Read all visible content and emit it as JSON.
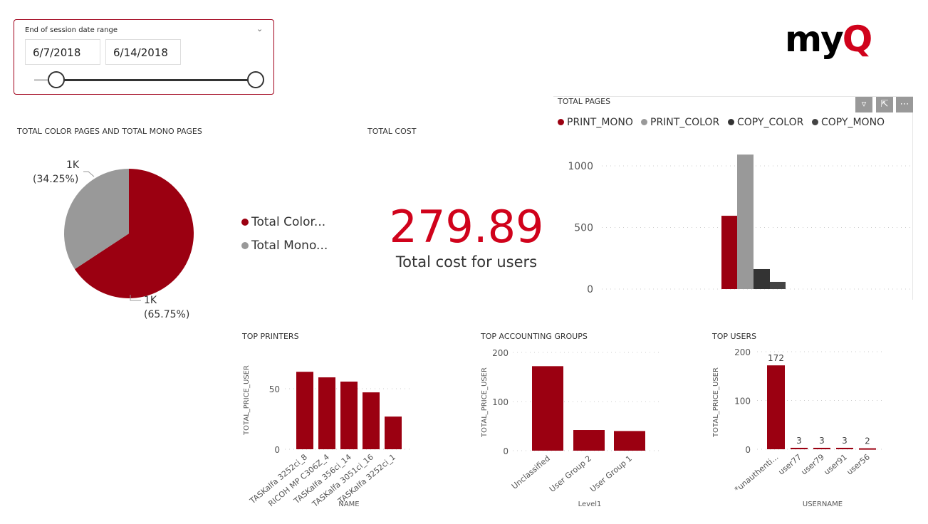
{
  "slicer": {
    "label": "End of session date range",
    "start": "6/7/2018",
    "end": "6/14/2018",
    "chevron": "chevron-down-icon"
  },
  "logo": {
    "text": "myQ",
    "colors": {
      "my": "#000000",
      "Q": "#d0021b"
    }
  },
  "colors": {
    "accent": "#9b0011",
    "grey": "#999999",
    "dark": "#333333",
    "darker": "#444444",
    "kpi": "#d0021b"
  },
  "pie": {
    "title": "TOTAL COLOR PAGES AND TOTAL MONO PAGES",
    "legend": [
      "Total Color...",
      "Total Mono..."
    ],
    "slices": [
      {
        "value_label": "1K",
        "pct_label": "(65.75%)",
        "pct": 65.75,
        "color": "#9b0011"
      },
      {
        "value_label": "1K",
        "pct_label": "(34.25%)",
        "pct": 34.25,
        "color": "#999999"
      }
    ]
  },
  "kpi": {
    "title": "TOTAL COST",
    "value": "279.89",
    "label": "Total cost for users"
  },
  "toolbar": {
    "filter": "filter-icon",
    "focus": "focus-mode-icon",
    "more": "⋯"
  },
  "chart_data": [
    {
      "type": "bar",
      "title": "TOTAL PAGES",
      "xlabel": "",
      "ylabel": "",
      "ylim": [
        0,
        1150
      ],
      "ticks": [
        0,
        500,
        1000
      ],
      "grid": true,
      "legend": "top-left",
      "categories": [
        ""
      ],
      "series": [
        {
          "name": "PRINT_MONO",
          "values": [
            595
          ],
          "color": "#9b0011"
        },
        {
          "name": "PRINT_COLOR",
          "values": [
            1092
          ],
          "color": "#999999"
        },
        {
          "name": "COPY_COLOR",
          "values": [
            162
          ],
          "color": "#333333"
        },
        {
          "name": "COPY_MONO",
          "values": [
            58
          ],
          "color": "#444444"
        }
      ]
    },
    {
      "type": "bar",
      "title": "TOP PRINTERS",
      "xlabel": "NAME",
      "ylabel": "TOTAL_PRICE_USER",
      "ylim": [
        0,
        70
      ],
      "ticks": [
        0,
        50
      ],
      "grid": true,
      "categories": [
        "TASKalfa 3252ci_8",
        "RICOH MP C306Z_4",
        "TASKalfa 356ci_14",
        "TASKalfa 3051ci_16",
        "TASKalfa 3252ci_1"
      ],
      "values": [
        64,
        59.4,
        55.9,
        47,
        27
      ]
    },
    {
      "type": "bar",
      "title": "TOP ACCOUNTING GROUPS",
      "xlabel": "Level1",
      "ylabel": "TOTAL_PRICE_USER",
      "ylim": [
        0,
        200
      ],
      "ticks": [
        0,
        100,
        200
      ],
      "grid": true,
      "categories": [
        "Unclassified",
        "User Group 2",
        "User Group 1"
      ],
      "values": [
        172,
        42,
        40
      ]
    },
    {
      "type": "bar",
      "title": "TOP USERS",
      "xlabel": "USERNAME",
      "ylabel": "TOTAL_PRICE_USER",
      "ylim": [
        0,
        200
      ],
      "ticks": [
        0,
        100,
        200
      ],
      "grid": true,
      "categories": [
        "*unauthenti...",
        "user77",
        "user79",
        "user91",
        "user56"
      ],
      "values": [
        172,
        3,
        3,
        3,
        2
      ],
      "data_labels": [
        "172",
        "3",
        "3",
        "3",
        "2"
      ]
    }
  ]
}
